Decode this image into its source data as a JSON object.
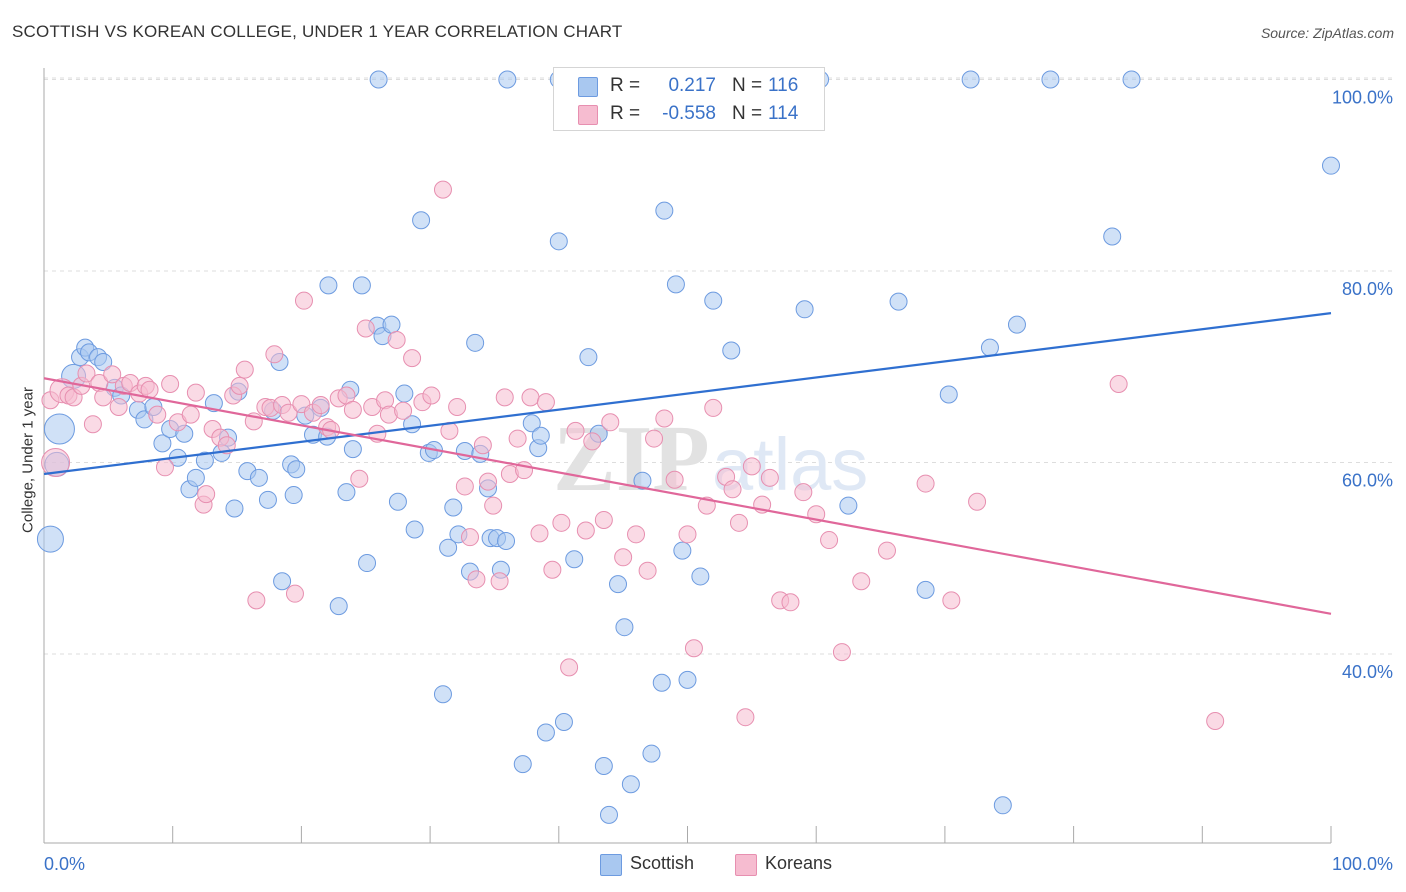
{
  "header": {
    "title": "SCOTTISH VS KOREAN COLLEGE, UNDER 1 YEAR CORRELATION CHART",
    "source": "Source: ZipAtlas.com"
  },
  "legend_top": {
    "rows": [
      {
        "r_label": "R =",
        "r_value": "0.217",
        "n_label": "N =",
        "n_value": "116"
      },
      {
        "r_label": "R =",
        "r_value": "-0.558",
        "n_label": "N =",
        "n_value": "114"
      }
    ]
  },
  "legend_bottom": {
    "items": [
      {
        "label": "Scottish"
      },
      {
        "label": "Koreans"
      }
    ]
  },
  "watermark": {
    "zip": "ZIP",
    "atlas": "atlas"
  },
  "colors": {
    "blue_fill": "#a9c8f0",
    "blue_stroke": "#6d9be0",
    "blue_line": "#2f6fd0",
    "pink_fill": "#f6bcd0",
    "pink_stroke": "#e78fb0",
    "pink_line": "#e0679a",
    "value_text": "#3a72c8",
    "grid": "#dddddd"
  },
  "chart_data": {
    "type": "scatter",
    "title": "SCOTTISH VS KOREAN COLLEGE, UNDER 1 YEAR CORRELATION CHART",
    "xlabel": "",
    "ylabel": "College, Under 1 year",
    "xlim": [
      0,
      100
    ],
    "ylim": [
      21,
      105
    ],
    "x_tick_labels": [
      "0.0%",
      "100.0%"
    ],
    "y_ticks": [
      40,
      60,
      80,
      100
    ],
    "y_tick_labels": [
      "40.0%",
      "60.0%",
      "80.0%",
      "100.0%"
    ],
    "grid": true,
    "legend_position": "top-center",
    "series": [
      {
        "name": "Scottish",
        "R": 0.217,
        "N": 116,
        "trend": {
          "x": [
            0,
            100
          ],
          "y": [
            58.8,
            75.6
          ]
        },
        "points": [
          [
            0.5,
            52.0
          ],
          [
            1.2,
            63.5
          ],
          [
            1.0,
            59.8
          ],
          [
            2.3,
            69.0
          ],
          [
            2.8,
            71.0
          ],
          [
            3.2,
            72.0
          ],
          [
            3.5,
            71.5
          ],
          [
            4.2,
            71.0
          ],
          [
            4.6,
            70.5
          ],
          [
            5.5,
            67.8
          ],
          [
            6.0,
            67.0
          ],
          [
            7.3,
            65.5
          ],
          [
            7.8,
            64.5
          ],
          [
            8.5,
            65.8
          ],
          [
            9.2,
            62.0
          ],
          [
            9.8,
            63.5
          ],
          [
            10.4,
            60.5
          ],
          [
            10.9,
            63.0
          ],
          [
            11.3,
            57.2
          ],
          [
            11.8,
            58.4
          ],
          [
            12.5,
            60.2
          ],
          [
            13.2,
            66.2
          ],
          [
            13.8,
            61.0
          ],
          [
            14.3,
            62.6
          ],
          [
            14.8,
            55.2
          ],
          [
            15.1,
            67.4
          ],
          [
            15.8,
            59.1
          ],
          [
            16.7,
            58.4
          ],
          [
            17.4,
            56.1
          ],
          [
            17.8,
            65.4
          ],
          [
            18.3,
            70.5
          ],
          [
            18.5,
            47.6
          ],
          [
            19.2,
            59.8
          ],
          [
            19.6,
            59.3
          ],
          [
            19.4,
            56.6
          ],
          [
            20.3,
            64.9
          ],
          [
            20.9,
            62.9
          ],
          [
            21.5,
            65.7
          ],
          [
            22.0,
            62.7
          ],
          [
            22.1,
            78.5
          ],
          [
            22.9,
            45.0
          ],
          [
            23.5,
            56.9
          ],
          [
            23.8,
            67.6
          ],
          [
            24.0,
            61.4
          ],
          [
            24.7,
            78.5
          ],
          [
            25.1,
            49.5
          ],
          [
            25.9,
            74.3
          ],
          [
            26.3,
            73.2
          ],
          [
            27.0,
            74.4
          ],
          [
            27.5,
            55.9
          ],
          [
            28.0,
            67.2
          ],
          [
            28.6,
            64.0
          ],
          [
            28.8,
            53.0
          ],
          [
            29.3,
            85.3
          ],
          [
            29.9,
            61.0
          ],
          [
            30.3,
            61.3
          ],
          [
            31.0,
            35.8
          ],
          [
            31.4,
            51.1
          ],
          [
            31.8,
            55.3
          ],
          [
            32.2,
            52.5
          ],
          [
            32.7,
            61.2
          ],
          [
            33.1,
            48.6
          ],
          [
            33.5,
            72.5
          ],
          [
            33.9,
            60.9
          ],
          [
            34.5,
            57.3
          ],
          [
            34.7,
            52.1
          ],
          [
            35.2,
            52.1
          ],
          [
            35.5,
            48.8
          ],
          [
            35.9,
            51.8
          ],
          [
            37.2,
            28.5
          ],
          [
            37.9,
            64.1
          ],
          [
            38.4,
            61.5
          ],
          [
            38.6,
            62.8
          ],
          [
            39.0,
            31.8
          ],
          [
            40.0,
            83.1
          ],
          [
            40.4,
            32.9
          ],
          [
            41.2,
            49.9
          ],
          [
            42.3,
            71.0
          ],
          [
            43.1,
            63.0
          ],
          [
            43.5,
            28.3
          ],
          [
            43.9,
            23.2
          ],
          [
            44.6,
            47.3
          ],
          [
            45.1,
            42.8
          ],
          [
            45.6,
            26.4
          ],
          [
            46.5,
            58.1
          ],
          [
            47.2,
            29.6
          ],
          [
            48.0,
            37.0
          ],
          [
            48.2,
            86.3
          ],
          [
            49.1,
            78.6
          ],
          [
            49.6,
            50.8
          ],
          [
            50.0,
            37.3
          ],
          [
            51.0,
            48.1
          ],
          [
            52.0,
            76.9
          ],
          [
            53.4,
            71.7
          ],
          [
            57.0,
            100.0
          ],
          [
            59.1,
            76.0
          ],
          [
            60.3,
            100.0
          ],
          [
            62.5,
            55.5
          ],
          [
            66.4,
            76.8
          ],
          [
            68.5,
            46.7
          ],
          [
            70.3,
            67.1
          ],
          [
            72.0,
            100.0
          ],
          [
            73.5,
            72.0
          ],
          [
            74.5,
            24.2
          ],
          [
            75.6,
            74.4
          ],
          [
            78.2,
            100.0
          ],
          [
            83.0,
            83.6
          ],
          [
            84.5,
            100.0
          ],
          [
            100.0,
            91.0
          ],
          [
            36.0,
            100.0
          ],
          [
            40.0,
            100.0
          ],
          [
            43.0,
            100.0
          ],
          [
            46.0,
            100.0
          ],
          [
            49.0,
            100.0
          ],
          [
            55.0,
            100.0
          ],
          [
            26.0,
            100.0
          ]
        ]
      },
      {
        "name": "Koreans",
        "R": -0.558,
        "N": 114,
        "trend": {
          "x": [
            0,
            100
          ],
          "y": [
            68.8,
            44.2
          ]
        },
        "points": [
          [
            0.5,
            66.5
          ],
          [
            0.9,
            60.0
          ],
          [
            1.4,
            67.5
          ],
          [
            1.9,
            67.0
          ],
          [
            2.3,
            66.8
          ],
          [
            2.9,
            68.0
          ],
          [
            3.3,
            69.3
          ],
          [
            3.8,
            64.0
          ],
          [
            4.3,
            68.3
          ],
          [
            4.6,
            66.8
          ],
          [
            5.3,
            69.2
          ],
          [
            5.8,
            65.8
          ],
          [
            6.2,
            68.0
          ],
          [
            6.7,
            68.3
          ],
          [
            7.4,
            67.2
          ],
          [
            7.9,
            68.0
          ],
          [
            8.2,
            67.6
          ],
          [
            8.8,
            65.0
          ],
          [
            9.4,
            59.5
          ],
          [
            9.8,
            68.2
          ],
          [
            10.4,
            64.2
          ],
          [
            11.4,
            65.0
          ],
          [
            11.8,
            67.3
          ],
          [
            12.4,
            55.6
          ],
          [
            12.6,
            56.7
          ],
          [
            13.1,
            63.5
          ],
          [
            13.7,
            62.6
          ],
          [
            14.2,
            61.8
          ],
          [
            14.7,
            67.0
          ],
          [
            15.2,
            68.0
          ],
          [
            15.6,
            69.7
          ],
          [
            16.3,
            64.3
          ],
          [
            16.5,
            45.6
          ],
          [
            17.2,
            65.8
          ],
          [
            17.6,
            65.7
          ],
          [
            17.9,
            71.3
          ],
          [
            18.5,
            66.0
          ],
          [
            19.0,
            65.2
          ],
          [
            19.5,
            46.3
          ],
          [
            20.0,
            66.1
          ],
          [
            20.2,
            76.9
          ],
          [
            20.9,
            65.2
          ],
          [
            21.5,
            66.0
          ],
          [
            22.0,
            63.7
          ],
          [
            22.3,
            63.4
          ],
          [
            22.9,
            66.7
          ],
          [
            23.5,
            67.0
          ],
          [
            24.0,
            65.5
          ],
          [
            24.5,
            58.3
          ],
          [
            25.0,
            74.0
          ],
          [
            25.5,
            65.8
          ],
          [
            25.9,
            63.0
          ],
          [
            26.5,
            66.5
          ],
          [
            26.8,
            65.0
          ],
          [
            27.4,
            72.8
          ],
          [
            27.9,
            65.4
          ],
          [
            28.6,
            70.9
          ],
          [
            29.4,
            66.3
          ],
          [
            30.1,
            67.0
          ],
          [
            31.0,
            88.5
          ],
          [
            31.5,
            63.3
          ],
          [
            32.1,
            65.8
          ],
          [
            32.7,
            57.5
          ],
          [
            33.1,
            52.2
          ],
          [
            33.6,
            47.8
          ],
          [
            34.1,
            61.8
          ],
          [
            34.5,
            58.0
          ],
          [
            34.9,
            55.5
          ],
          [
            35.4,
            47.6
          ],
          [
            35.8,
            66.8
          ],
          [
            36.2,
            58.8
          ],
          [
            36.8,
            62.5
          ],
          [
            37.3,
            59.2
          ],
          [
            37.8,
            66.8
          ],
          [
            38.5,
            52.6
          ],
          [
            39.0,
            66.3
          ],
          [
            39.5,
            48.8
          ],
          [
            40.2,
            53.7
          ],
          [
            40.8,
            38.6
          ],
          [
            41.3,
            63.3
          ],
          [
            42.1,
            52.9
          ],
          [
            42.6,
            62.2
          ],
          [
            43.5,
            54.0
          ],
          [
            44.0,
            64.2
          ],
          [
            45.0,
            50.1
          ],
          [
            46.0,
            52.5
          ],
          [
            46.9,
            48.7
          ],
          [
            47.4,
            62.5
          ],
          [
            48.2,
            64.6
          ],
          [
            49.0,
            58.2
          ],
          [
            50.0,
            52.5
          ],
          [
            50.5,
            40.6
          ],
          [
            51.5,
            55.5
          ],
          [
            52.0,
            65.7
          ],
          [
            53.0,
            58.5
          ],
          [
            53.5,
            57.2
          ],
          [
            54.0,
            53.7
          ],
          [
            54.5,
            33.4
          ],
          [
            55.0,
            59.6
          ],
          [
            55.8,
            55.6
          ],
          [
            56.4,
            58.4
          ],
          [
            57.2,
            45.6
          ],
          [
            58.0,
            45.4
          ],
          [
            59.0,
            56.9
          ],
          [
            60.0,
            54.6
          ],
          [
            61.0,
            51.9
          ],
          [
            62.0,
            40.2
          ],
          [
            63.5,
            47.6
          ],
          [
            65.5,
            50.8
          ],
          [
            68.5,
            57.8
          ],
          [
            70.5,
            45.6
          ],
          [
            72.5,
            55.9
          ],
          [
            83.5,
            68.2
          ],
          [
            91.0,
            33.0
          ]
        ]
      }
    ]
  }
}
